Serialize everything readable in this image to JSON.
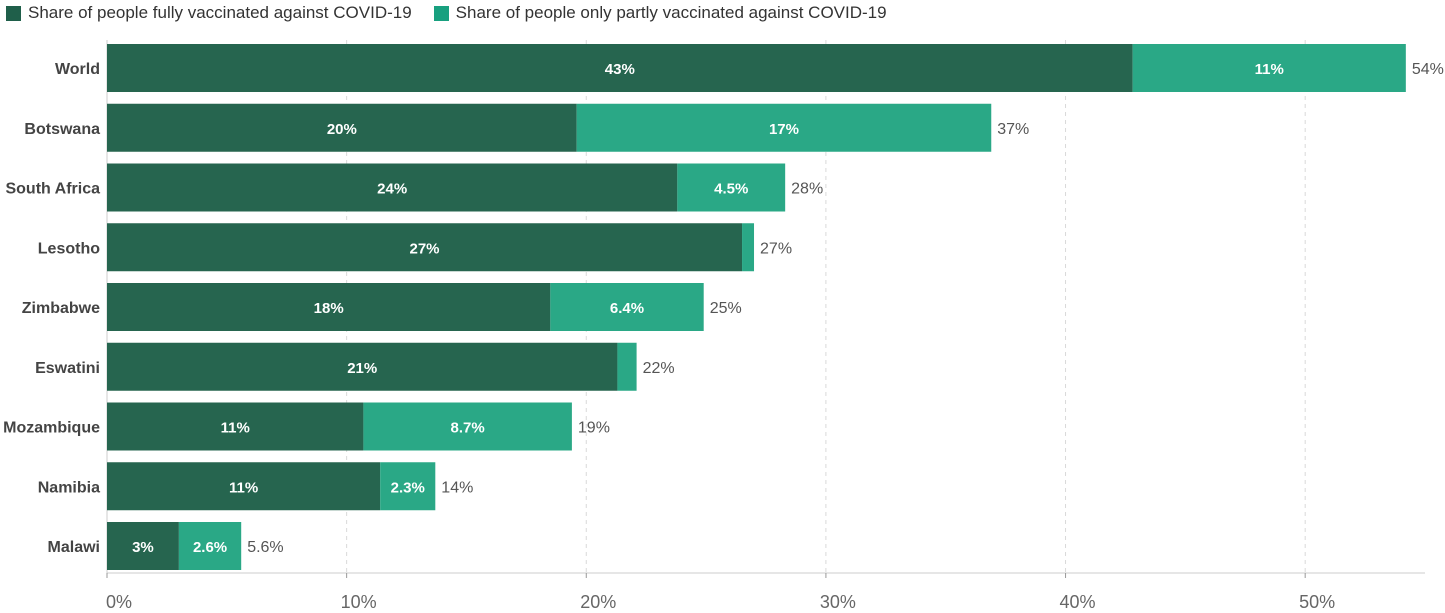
{
  "legend": {
    "full_label": "Share of people fully vaccinated against COVID-19",
    "partial_label": "Share of people only partly vaccinated against COVID-19"
  },
  "colors": {
    "full": "#26654f",
    "partial": "#2aa886",
    "full_swatch": "#1f5f4a",
    "partial_swatch": "#18a07f"
  },
  "chart_data": {
    "type": "bar",
    "orientation": "horizontal",
    "stacked": true,
    "categories": [
      "World",
      "Botswana",
      "South Africa",
      "Lesotho",
      "Zimbabwe",
      "Eswatini",
      "Mozambique",
      "Namibia",
      "Malawi"
    ],
    "series": [
      {
        "name": "Share of people fully vaccinated against COVID-19",
        "values": [
          42.8,
          19.6,
          23.8,
          26.5,
          18.5,
          21.3,
          10.7,
          11.4,
          3.0
        ],
        "labels": [
          "43%",
          "20%",
          "24%",
          "27%",
          "18%",
          "21%",
          "11%",
          "11%",
          "3%"
        ]
      },
      {
        "name": "Share of people only partly vaccinated against COVID-19",
        "values": [
          11.4,
          17.3,
          4.5,
          0.5,
          6.4,
          0.8,
          8.7,
          2.3,
          2.6
        ],
        "labels": [
          "11%",
          "17%",
          "4.5%",
          "",
          "6.4%",
          "",
          "8.7%",
          "2.3%",
          "2.6%"
        ]
      }
    ],
    "totals": [
      "54%",
      "37%",
      "28%",
      "27%",
      "25%",
      "22%",
      "19%",
      "14%",
      "5.6%"
    ],
    "xlim": [
      0,
      55
    ],
    "xticks": [
      0,
      10,
      20,
      30,
      40,
      50
    ],
    "xtick_labels": [
      "0%",
      "10%",
      "20%",
      "30%",
      "40%",
      "50%"
    ],
    "grid": true,
    "legend_position": "top-left"
  }
}
